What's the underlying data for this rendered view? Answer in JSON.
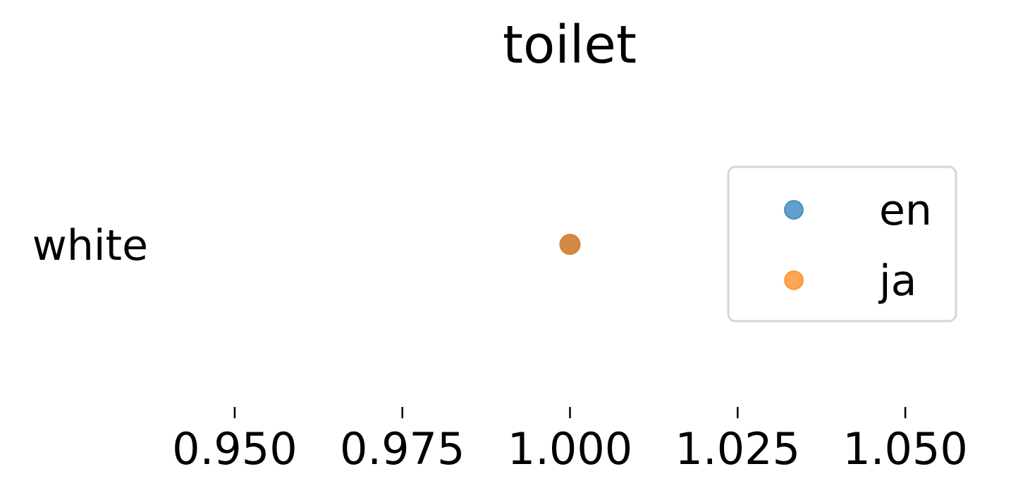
{
  "chart_data": {
    "type": "scatter",
    "title": "toilet",
    "xlabel": "",
    "ylabel": "",
    "categories": [
      "white"
    ],
    "xlim": [
      0.9375,
      1.0625
    ],
    "xticks": [
      0.95,
      0.975,
      1.0,
      1.025,
      1.05
    ],
    "xtick_labels": [
      "0.950",
      "0.975",
      "1.000",
      "1.025",
      "1.050"
    ],
    "grid": false,
    "legend": "right",
    "series": [
      {
        "name": "en",
        "color": "#1f77b4",
        "points": [
          {
            "category": "white",
            "x": 1.0
          }
        ]
      },
      {
        "name": "ja",
        "color": "#ff7f0e",
        "points": [
          {
            "category": "white",
            "x": 1.0
          }
        ]
      }
    ]
  }
}
